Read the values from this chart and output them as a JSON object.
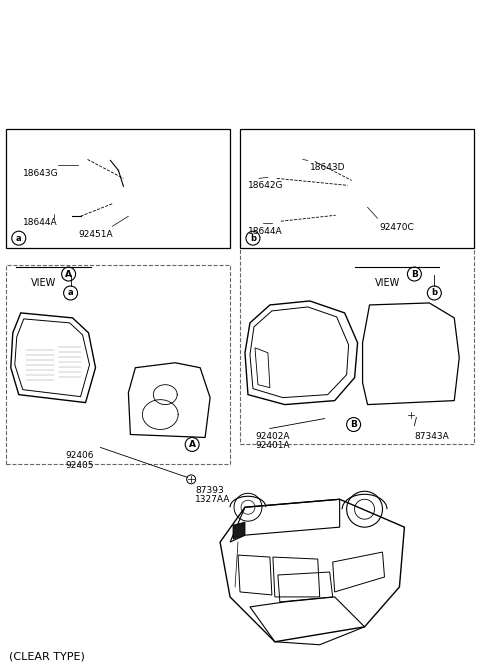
{
  "bg_color": "#ffffff",
  "line_color": "#000000",
  "text_color": "#000000",
  "labels": {
    "clear_type": "(CLEAR TYPE)",
    "1327AA": "1327AA",
    "87393": "87393",
    "92405": "92405",
    "92406": "92406",
    "92401A": "92401A",
    "92402A": "92402A",
    "87343A": "87343A",
    "view_A": "VIEW",
    "view_B": "VIEW",
    "A": "A",
    "B": "B",
    "a": "a",
    "b": "b",
    "92451A": "92451A",
    "18644A": "18644A",
    "18643G": "18643G",
    "92470C": "92470C",
    "18642G": "18642G",
    "18643D": "18643D"
  },
  "layout": {
    "fig_w": 4.8,
    "fig_h": 6.64,
    "dpi": 100
  }
}
